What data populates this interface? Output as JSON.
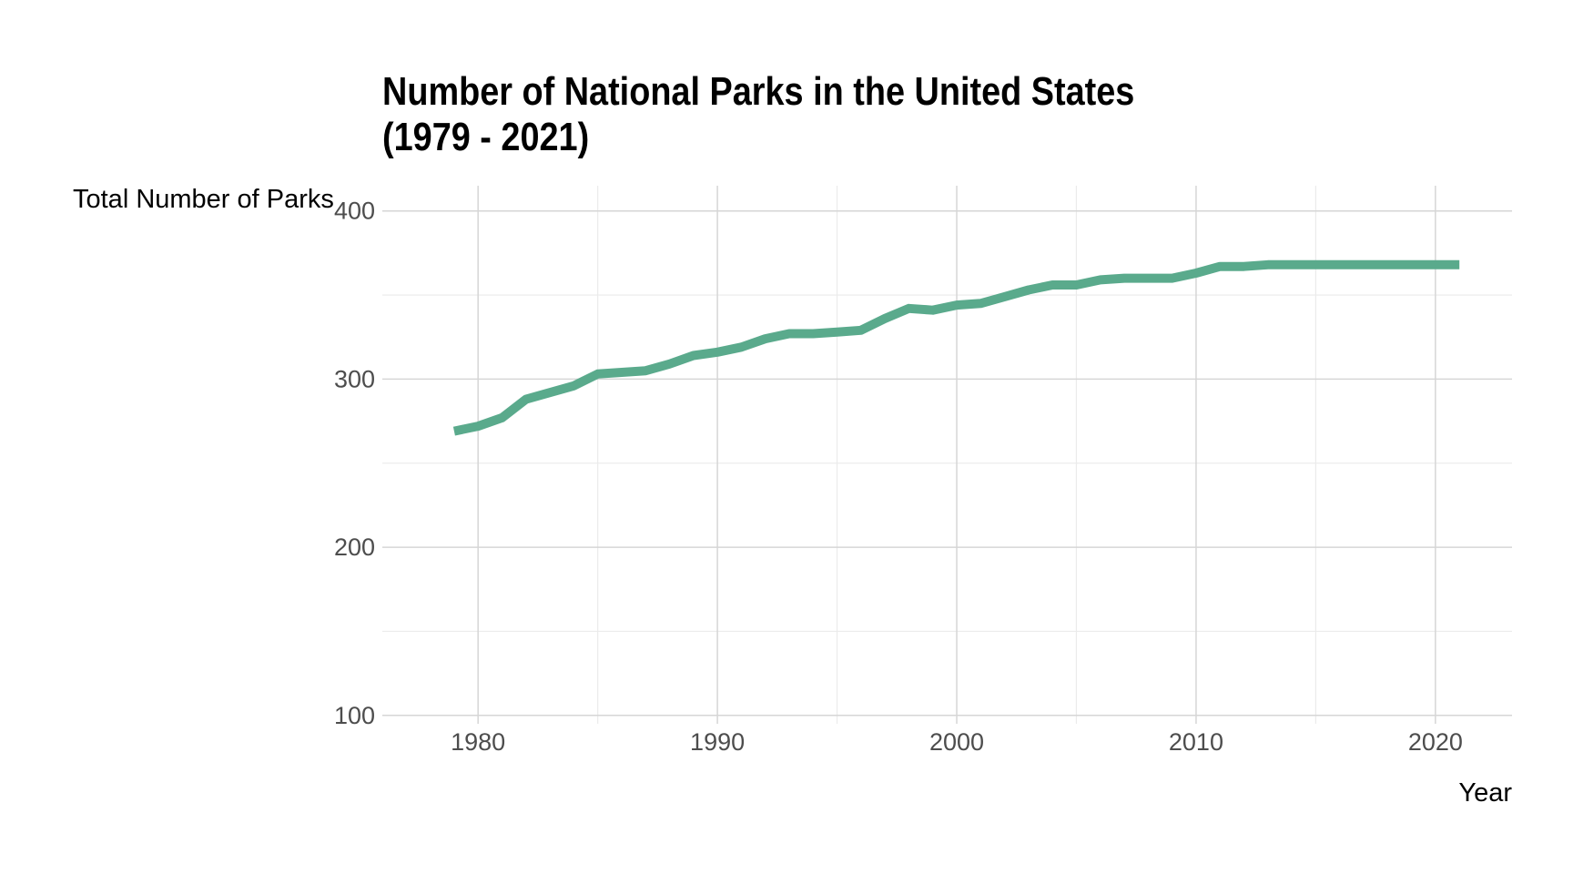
{
  "chart_data": {
    "type": "line",
    "title_lines": [
      "Number of National Parks in the United States",
      "(1979 - 2021)"
    ],
    "xlabel": "Year",
    "ylabel": "Total Number of Parks",
    "xlim": [
      1976,
      2023.2
    ],
    "ylim": [
      95,
      415
    ],
    "x_ticks": [
      1980,
      1990,
      2000,
      2010,
      2020
    ],
    "x_tick_labels": [
      "1980",
      "1990",
      "2000",
      "2010",
      "2020"
    ],
    "y_ticks": [
      100,
      200,
      300,
      400
    ],
    "y_tick_labels": [
      "100",
      "200",
      "300",
      "400"
    ],
    "grid": true,
    "legend": "none",
    "series": [
      {
        "color": "#5aaa8c",
        "x": [
          1979,
          1980,
          1981,
          1982,
          1983,
          1984,
          1985,
          1986,
          1987,
          1988,
          1989,
          1990,
          1991,
          1992,
          1993,
          1994,
          1995,
          1996,
          1997,
          1998,
          1999,
          2000,
          2001,
          2002,
          2003,
          2004,
          2005,
          2006,
          2007,
          2008,
          2009,
          2010,
          2011,
          2012,
          2013,
          2014,
          2015,
          2016,
          2017,
          2018,
          2019,
          2020,
          2021
        ],
        "values": [
          269,
          272,
          277,
          288,
          292,
          296,
          303,
          304,
          305,
          309,
          314,
          316,
          319,
          324,
          327,
          327,
          328,
          329,
          336,
          342,
          341,
          344,
          345,
          349,
          353,
          356,
          356,
          359,
          360,
          360,
          360,
          363,
          367,
          367,
          368,
          368,
          368,
          368,
          368,
          368,
          368,
          368,
          368
        ]
      }
    ]
  }
}
